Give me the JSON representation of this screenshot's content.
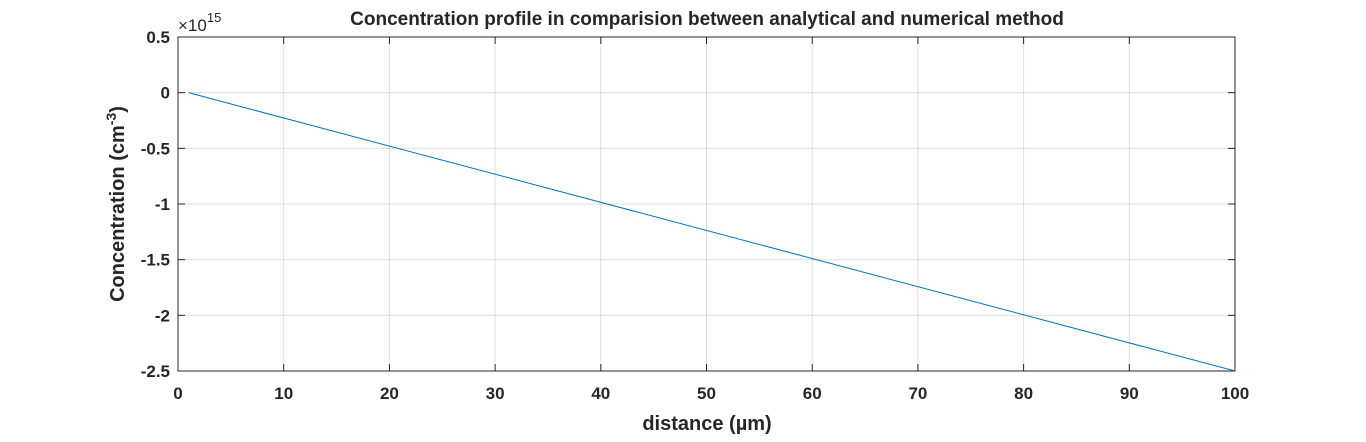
{
  "chart_data": {
    "type": "line",
    "title": "Concentration profile in comparision between analytical and numerical method",
    "xlabel": "distance (µm)",
    "ylabel_main": "Concentration (cm",
    "ylabel_sup": "-3",
    "ylabel_close": ")",
    "y_exponent_base": "×10",
    "y_exponent_power": "15",
    "xlim": [
      0,
      100
    ],
    "ylim": [
      -2.5,
      0.5
    ],
    "y_scale_factor": 1000000000000000.0,
    "xticks": [
      0,
      10,
      20,
      30,
      40,
      50,
      60,
      70,
      80,
      90,
      100
    ],
    "xtick_labels": [
      "0",
      "10",
      "20",
      "30",
      "40",
      "50",
      "60",
      "70",
      "80",
      "90",
      "100"
    ],
    "yticks": [
      0.5,
      0,
      -0.5,
      -1,
      -1.5,
      -2,
      -2.5
    ],
    "ytick_labels": [
      "0.5",
      "0",
      "-0.5",
      "-1",
      "-1.5",
      "-2",
      "-2.5"
    ],
    "grid": true,
    "series": [
      {
        "color": "#0072BD",
        "x": [
          1,
          100
        ],
        "y": [
          0,
          -2.5
        ]
      }
    ]
  }
}
